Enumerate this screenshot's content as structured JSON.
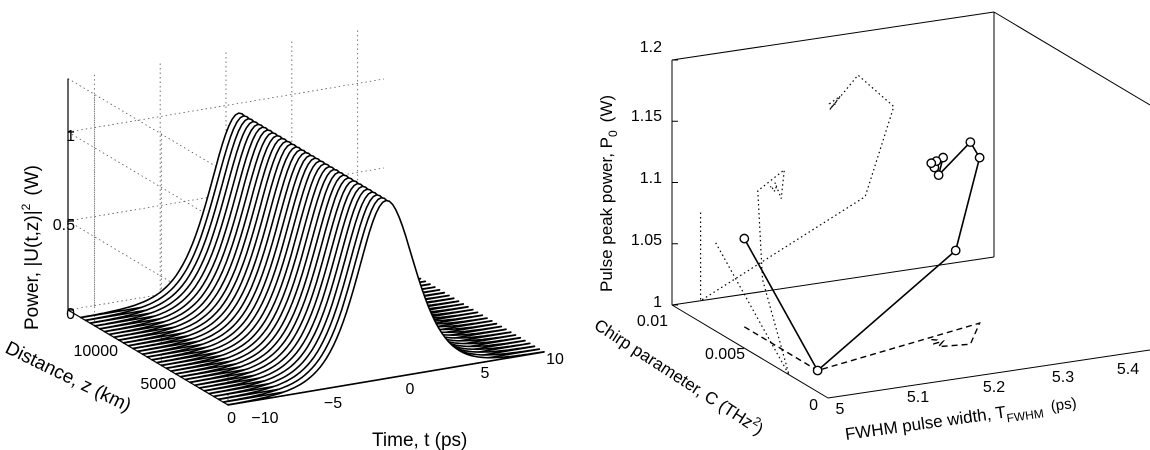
{
  "chart_data": [
    {
      "type": "surface",
      "title": "",
      "zlabel": "Power, |U(t,z)|",
      "zlabel_sup": "2",
      "zlabel_unit": "(W)",
      "ylabel": "Distance, z  (km)",
      "xlabel": "Time, t  (ps)",
      "x_ticks": [
        "−10",
        "−5",
        "0",
        "5",
        "10"
      ],
      "y_ticks": [
        "0",
        "5000",
        "10000"
      ],
      "z_ticks": [
        "0",
        "0.5",
        "1"
      ],
      "xlim": [
        -12,
        12
      ],
      "ylim": [
        0,
        12000
      ],
      "zlim": [
        0,
        1.3
      ],
      "pulse_peak_power": 1.0,
      "pulse_fwhm_ps": 5.2,
      "num_traces": 32,
      "grid": true
    },
    {
      "type": "line3d",
      "title": "",
      "zlabel": "Pulse peak power, P",
      "zlabel_sub": "0",
      "zlabel_unit": "(W)",
      "xlabel": "FWHM pulse width, T",
      "xlabel_sub": "FWHM",
      "xlabel_unit": "(ps)",
      "ylabel": "Chirp parameter, C  (THz",
      "ylabel_sup": "2",
      "ylabel_close": ")",
      "x_ticks": [
        "5",
        "5.1",
        "5.2",
        "5.3",
        "5.4"
      ],
      "y_ticks": [
        "0",
        "0.005",
        "0.01"
      ],
      "z_ticks": [
        "1",
        "1.05",
        "1.1",
        "1.15",
        "1.2"
      ],
      "xlim": [
        5,
        5.45
      ],
      "ylim": [
        0,
        0.01
      ],
      "zlim": [
        1,
        1.2
      ],
      "series": [
        {
          "style": "solid-circles",
          "points": [
            {
              "x": 5.04,
              "y": 0.0072,
              "z": 1.072
            },
            {
              "x": 5.04,
              "y": 0.0025,
              "z": 1.0
            },
            {
              "x": 5.27,
              "y": 0.0042,
              "z": 1.065
            },
            {
              "x": 5.31,
              "y": 0.0045,
              "z": 1.135
            },
            {
              "x": 5.26,
              "y": 0.0028,
              "z": 1.165
            },
            {
              "x": 5.22,
              "y": 0.003,
              "z": 1.14
            },
            {
              "x": 5.235,
              "y": 0.0034,
              "z": 1.15
            },
            {
              "x": 5.22,
              "y": 0.0033,
              "z": 1.145
            },
            {
              "x": 5.225,
              "y": 0.0035,
              "z": 1.142
            },
            {
              "x": 5.23,
              "y": 0.0036,
              "z": 1.146
            },
            {
              "x": 5.225,
              "y": 0.0037,
              "z": 1.144
            }
          ]
        }
      ],
      "projections": [
        "dotted (back wall)",
        "dashed (floor)"
      ],
      "grid": false
    }
  ]
}
